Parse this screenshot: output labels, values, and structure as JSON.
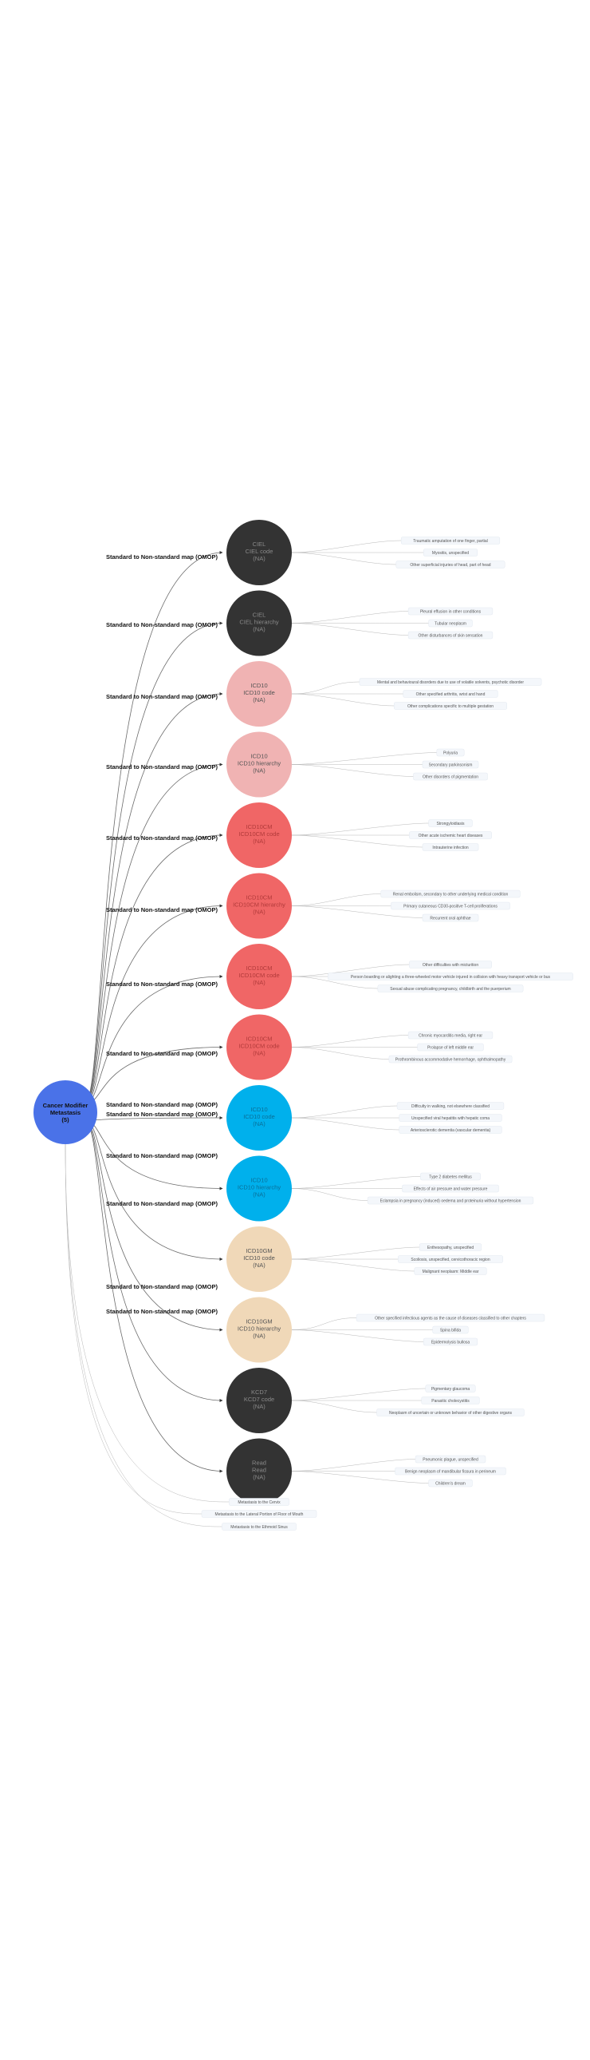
{
  "root": {
    "lines": [
      "Cancer Modifier",
      "Metastasis",
      "(5)"
    ],
    "color": "#4a72e8"
  },
  "edge_label": "Standard to Non-standard map (OMOP)",
  "colors": {
    "dark": "#333333",
    "pink": "#f0b3b3",
    "red": "#f06666",
    "blue": "#00b0ec",
    "beige": "#f0d8b8",
    "leaf_text": "#555555",
    "leaf_bg": "#f4f7fb"
  },
  "nodes": [
    {
      "lines": [
        "CIEL",
        "CIEL code",
        "(NA)"
      ],
      "color_key": "dark",
      "leaves": [
        "Traumatic amputation of one finger, partial",
        "Myositis, unspecified",
        "Other superficial injuries of head, part of head"
      ]
    },
    {
      "lines": [
        "CIEL",
        "CIEL hierarchy",
        "(NA)"
      ],
      "color_key": "dark",
      "leaves": [
        "Pleural effusion in other conditions",
        "Tubular neoplasm",
        "Other disturbances of skin sensation"
      ]
    },
    {
      "lines": [
        "ICD10",
        "ICD10 code",
        "(NA)"
      ],
      "color_key": "pink",
      "leaves": [
        "Mental and behavioural disorders due to use of volatile solvents, psychotic disorder",
        "Other specified arthritis, wrist and hand",
        "Other complications specific to multiple gestation"
      ]
    },
    {
      "lines": [
        "ICD10",
        "ICD10 hierarchy",
        "(NA)"
      ],
      "color_key": "pink",
      "leaves": [
        "Polyuria",
        "Secondary parkinsonism",
        "Other disorders of pigmentation"
      ]
    },
    {
      "lines": [
        "ICD10CM",
        "ICD10CM code",
        "(NA)"
      ],
      "color_key": "red",
      "leaves": [
        "Strongyloidiasis",
        "Other acute ischemic heart diseases",
        "Intrauterine infection"
      ]
    },
    {
      "lines": [
        "ICD10CM",
        "ICD10CM hierarchy",
        "(NA)"
      ],
      "color_key": "red",
      "leaves": [
        "Renal embolism, secondary to other underlying medical condition",
        "Primary cutaneous CD30-positive T-cell proliferations",
        "Recurrent oral aphthae"
      ]
    },
    {
      "lines": [
        "ICD10CM",
        "ICD10CM code",
        "(NA)"
      ],
      "color_key": "red",
      "leaves": [
        "Other difficulties with micturition",
        "Person boarding or alighting a three-wheeled motor vehicle injured in collision with heavy transport vehicle or bus",
        "Sexual abuse complicating pregnancy, childbirth and the puerperium"
      ]
    },
    {
      "lines": [
        "ICD10CM",
        "ICD10CM code",
        "(NA)"
      ],
      "color_key": "red",
      "leaves": [
        "Chronic myocarditis media, right ear",
        "Prolapse of left middle ear",
        "Prothrombinous accommodative hemorrhage, ophthalmopathy"
      ]
    },
    {
      "lines": [
        "ICD10",
        "ICD10 code",
        "(NA)"
      ],
      "color_key": "blue",
      "leaves": [
        "Difficulty in walking, not elsewhere classified",
        "Unspecified viral hepatitis with hepatic coma",
        "Arteriosclerotic dementia (vascular dementia)"
      ]
    },
    {
      "lines": [
        "ICD10",
        "ICD10 hierarchy",
        "(NA)"
      ],
      "color_key": "blue",
      "leaves": [
        "Type 2 diabetes mellitus",
        "Effects of air pressure and water pressure",
        "Eclampsia in pregnancy (induced) oedema and proteinuria without hypertension"
      ]
    },
    {
      "lines": [
        "ICD10GM",
        "ICD10 code",
        "(NA)"
      ],
      "color_key": "beige",
      "leaves": [
        "Enthesopathy, unspecified",
        "Scoliosis, unspecified, cervicothoracic region",
        "Malignant neoplasm: Middle ear"
      ]
    },
    {
      "lines": [
        "ICD10GM",
        "ICD10 hierarchy",
        "(NA)"
      ],
      "color_key": "beige",
      "leaves": [
        "Other specified infectious agents as the cause of diseases classified to other chapters",
        "Spina bifida",
        "Epidermolysis bullosa"
      ]
    },
    {
      "lines": [
        "KCD7",
        "KCD7 code",
        "(NA)"
      ],
      "color_key": "dark",
      "leaves": [
        "Pigmentary glaucoma",
        "Parasitic cholecystitis",
        "Neoplasm of uncertain or unknown behavior of other digestive organs"
      ]
    },
    {
      "lines": [
        "Read",
        "Read",
        "(NA)"
      ],
      "color_key": "dark",
      "leaves": [
        "Pneumonic plague, unspecified",
        "Benign neoplasm of mandibular fissura in perineum",
        "Children's dream"
      ]
    }
  ],
  "edge_label_count": 14,
  "extra_leaves": [
    "Metastasis to the Cervix",
    "Metastasis to the Lateral Portion of Floor of Mouth",
    "Metastasis to the Ethmoid Sinus"
  ]
}
